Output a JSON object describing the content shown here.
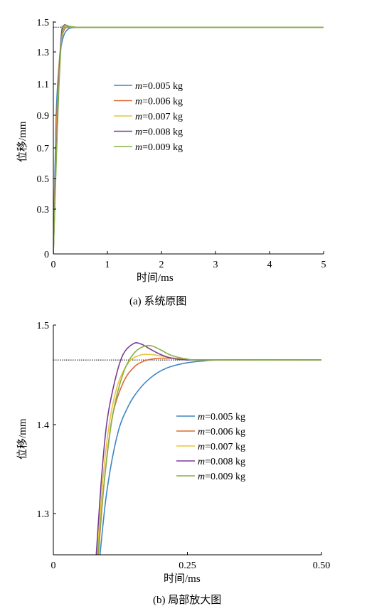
{
  "chart_data": [
    {
      "id": "a",
      "type": "line",
      "caption": "(a) 系统原图",
      "xlabel": "时间/ms",
      "ylabel": "位移/mm",
      "xlim": [
        0,
        5
      ],
      "ylim": [
        0,
        1.5
      ],
      "xticks": [
        "0",
        "1",
        "2",
        "3",
        "4",
        "5"
      ],
      "yticks": [
        "0",
        "0.3",
        "0.5",
        "0.7",
        "0.9",
        "1.1",
        "1.3",
        "1.5"
      ],
      "reference_line": {
        "y": 1.462,
        "x_end": 0.28,
        "style": "dotted"
      },
      "legend_position": "center",
      "series": [
        {
          "name": "m=0.005 kg",
          "color": "#3b86c6",
          "x": [
            0,
            0.05,
            0.1,
            0.15,
            0.2,
            0.25,
            0.3,
            0.4,
            0.5,
            0.6,
            5
          ],
          "y": [
            0,
            0.86,
            1.2,
            1.35,
            1.415,
            1.443,
            1.455,
            1.461,
            1.462,
            1.462,
            1.462
          ]
        },
        {
          "name": "m=0.006 kg",
          "color": "#dd6a2c",
          "x": [
            0,
            0.05,
            0.1,
            0.15,
            0.2,
            0.25,
            0.3,
            0.4,
            0.5,
            5
          ],
          "y": [
            0,
            0.72,
            1.18,
            1.38,
            1.445,
            1.462,
            1.465,
            1.463,
            1.462,
            1.462
          ]
        },
        {
          "name": "m=0.007 kg",
          "color": "#e8c53a",
          "x": [
            0,
            0.05,
            0.1,
            0.15,
            0.2,
            0.25,
            0.3,
            0.4,
            0.5,
            5
          ],
          "y": [
            0,
            0.65,
            1.15,
            1.39,
            1.462,
            1.468,
            1.466,
            1.462,
            1.462,
            1.462
          ]
        },
        {
          "name": "m=0.008 kg",
          "color": "#7b3b95",
          "x": [
            0,
            0.05,
            0.1,
            0.15,
            0.2,
            0.25,
            0.3,
            0.4,
            0.5,
            5
          ],
          "y": [
            0,
            0.6,
            1.1,
            1.42,
            1.475,
            1.472,
            1.465,
            1.462,
            1.462,
            1.462
          ]
        },
        {
          "name": "m=0.009 kg",
          "color": "#86b048",
          "x": [
            0,
            0.05,
            0.1,
            0.15,
            0.2,
            0.25,
            0.3,
            0.4,
            0.5,
            5
          ],
          "y": [
            0,
            0.55,
            1.05,
            1.38,
            1.468,
            1.474,
            1.468,
            1.463,
            1.462,
            1.462
          ]
        }
      ]
    },
    {
      "id": "b",
      "type": "line",
      "caption": "(b) 局部放大图",
      "xlabel": "时间/ms",
      "ylabel": "位移/mm",
      "xlim": [
        0,
        0.5
      ],
      "ylim": [
        1.25,
        1.5
      ],
      "xticks": [
        "0",
        "0.25",
        "0.50"
      ],
      "yticks": [
        "1.3",
        "1.4",
        "1.5"
      ],
      "reference_line": {
        "y": 1.462,
        "x_end": 0.5,
        "style": "dotted"
      },
      "legend_position": "center-right",
      "series": [
        {
          "name": "m=0.005 kg",
          "color": "#3b86c6",
          "x": [
            0.087,
            0.1,
            0.12,
            0.14,
            0.16,
            0.18,
            0.2,
            0.22,
            0.25,
            0.28,
            0.32,
            0.5
          ],
          "y": [
            1.25,
            1.32,
            1.382,
            1.412,
            1.43,
            1.442,
            1.45,
            1.455,
            1.459,
            1.461,
            1.462,
            1.462
          ]
        },
        {
          "name": "m=0.006 kg",
          "color": "#dd6a2c",
          "x": [
            0.084,
            0.095,
            0.11,
            0.13,
            0.15,
            0.17,
            0.19,
            0.21,
            0.23,
            0.25,
            0.3,
            0.5
          ],
          "y": [
            1.25,
            1.33,
            1.4,
            1.437,
            1.454,
            1.461,
            1.4635,
            1.464,
            1.4635,
            1.4625,
            1.462,
            1.462
          ]
        },
        {
          "name": "m=0.007 kg",
          "color": "#e8c53a",
          "x": [
            0.082,
            0.092,
            0.105,
            0.12,
            0.14,
            0.16,
            0.18,
            0.2,
            0.22,
            0.25,
            0.28,
            0.5
          ],
          "y": [
            1.25,
            1.33,
            1.395,
            1.435,
            1.459,
            1.467,
            1.468,
            1.4665,
            1.4645,
            1.4625,
            1.462,
            1.462
          ]
        },
        {
          "name": "m=0.008 kg",
          "color": "#7b3b95",
          "x": [
            0.08,
            0.09,
            0.1,
            0.115,
            0.13,
            0.15,
            0.165,
            0.18,
            0.2,
            0.22,
            0.25,
            0.28,
            0.5
          ],
          "y": [
            1.25,
            1.335,
            1.395,
            1.44,
            1.468,
            1.48,
            1.479,
            1.474,
            1.468,
            1.464,
            1.462,
            1.462,
            1.462
          ]
        },
        {
          "name": "m=0.009 kg",
          "color": "#86b048",
          "x": [
            0.083,
            0.095,
            0.11,
            0.13,
            0.15,
            0.17,
            0.185,
            0.2,
            0.22,
            0.25,
            0.28,
            0.5
          ],
          "y": [
            1.25,
            1.33,
            1.4,
            1.447,
            1.469,
            1.477,
            1.477,
            1.473,
            1.467,
            1.463,
            1.462,
            1.462
          ]
        }
      ]
    }
  ]
}
